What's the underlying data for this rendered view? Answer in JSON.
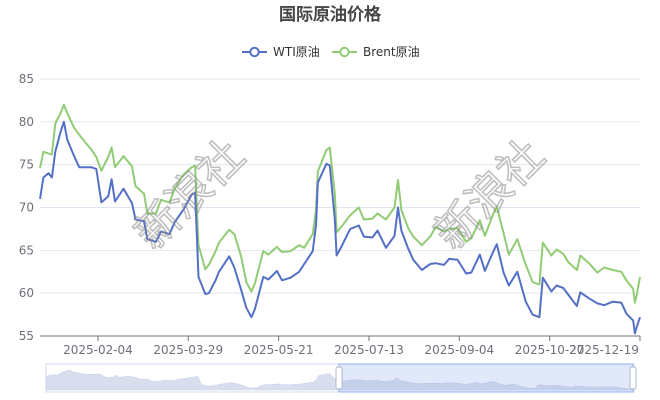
{
  "chart_data": {
    "type": "line",
    "title": "国际原油价格",
    "xlabel": "",
    "ylabel": "",
    "ylim": [
      55,
      85
    ],
    "y_ticks": [
      55,
      60,
      65,
      70,
      75,
      80,
      85
    ],
    "x_tick_labels": [
      "2025-02-04",
      "2025-03-29",
      "2025-05-21",
      "2025-07-13",
      "2025-09-04",
      "2025-10-27",
      "2025-12-19"
    ],
    "x_tick_dates": [
      "2025-02-04",
      "2025-03-29",
      "2025-05-21",
      "2025-07-13",
      "2025-09-04",
      "2025-10-27",
      "2025-12-19"
    ],
    "x_range": [
      "2025-01-01",
      "2025-12-19"
    ],
    "grid": "horizontal",
    "legend_position": "top-center",
    "watermark": "新浪社",
    "series": [
      {
        "name": "WTI原油",
        "color": "#5470c6",
        "points": [
          [
            "2025-01-01",
            71.0
          ],
          [
            "2025-01-03",
            73.5
          ],
          [
            "2025-01-06",
            74.0
          ],
          [
            "2025-01-08",
            73.5
          ],
          [
            "2025-01-10",
            76.5
          ],
          [
            "2025-01-13",
            78.8
          ],
          [
            "2025-01-15",
            80.0
          ],
          [
            "2025-01-17",
            77.9
          ],
          [
            "2025-01-21",
            76.0
          ],
          [
            "2025-01-24",
            74.7
          ],
          [
            "2025-01-28",
            74.7
          ],
          [
            "2025-01-31",
            74.7
          ],
          [
            "2025-02-03",
            74.5
          ],
          [
            "2025-02-06",
            70.6
          ],
          [
            "2025-02-10",
            71.3
          ],
          [
            "2025-02-12",
            73.3
          ],
          [
            "2025-02-14",
            70.7
          ],
          [
            "2025-02-19",
            72.2
          ],
          [
            "2025-02-24",
            70.5
          ],
          [
            "2025-02-26",
            68.6
          ],
          [
            "2025-03-03",
            68.4
          ],
          [
            "2025-03-05",
            66.3
          ],
          [
            "2025-03-10",
            66.0
          ],
          [
            "2025-03-13",
            67.2
          ],
          [
            "2025-03-18",
            66.9
          ],
          [
            "2025-03-21",
            68.3
          ],
          [
            "2025-03-26",
            69.7
          ],
          [
            "2025-03-31",
            71.5
          ],
          [
            "2025-04-02",
            71.7
          ],
          [
            "2025-04-03",
            66.9
          ],
          [
            "2025-04-04",
            61.9
          ],
          [
            "2025-04-08",
            59.9
          ],
          [
            "2025-04-10",
            60.0
          ],
          [
            "2025-04-14",
            61.5
          ],
          [
            "2025-04-16",
            62.5
          ],
          [
            "2025-04-22",
            64.3
          ],
          [
            "2025-04-25",
            63.0
          ],
          [
            "2025-04-29",
            60.4
          ],
          [
            "2025-05-02",
            58.3
          ],
          [
            "2025-05-05",
            57.2
          ],
          [
            "2025-05-07",
            58.1
          ],
          [
            "2025-05-12",
            61.9
          ],
          [
            "2025-05-15",
            61.6
          ],
          [
            "2025-05-20",
            62.6
          ],
          [
            "2025-05-23",
            61.5
          ],
          [
            "2025-05-28",
            61.8
          ],
          [
            "2025-06-02",
            62.5
          ],
          [
            "2025-06-05",
            63.4
          ],
          [
            "2025-06-10",
            64.9
          ],
          [
            "2025-06-12",
            68.0
          ],
          [
            "2025-06-13",
            72.9
          ],
          [
            "2025-06-18",
            75.1
          ],
          [
            "2025-06-20",
            74.9
          ],
          [
            "2025-06-23",
            68.5
          ],
          [
            "2025-06-24",
            64.4
          ],
          [
            "2025-06-27",
            65.5
          ],
          [
            "2025-07-02",
            67.5
          ],
          [
            "2025-07-07",
            67.9
          ],
          [
            "2025-07-10",
            66.6
          ],
          [
            "2025-07-15",
            66.5
          ],
          [
            "2025-07-18",
            67.3
          ],
          [
            "2025-07-23",
            65.3
          ],
          [
            "2025-07-28",
            66.7
          ],
          [
            "2025-07-30",
            70.0
          ],
          [
            "2025-08-01",
            67.3
          ],
          [
            "2025-08-05",
            65.2
          ],
          [
            "2025-08-08",
            63.9
          ],
          [
            "2025-08-13",
            62.7
          ],
          [
            "2025-08-18",
            63.4
          ],
          [
            "2025-08-21",
            63.5
          ],
          [
            "2025-08-26",
            63.3
          ],
          [
            "2025-08-29",
            64.0
          ],
          [
            "2025-09-03",
            63.9
          ],
          [
            "2025-09-08",
            62.3
          ],
          [
            "2025-09-11",
            62.4
          ],
          [
            "2025-09-16",
            64.5
          ],
          [
            "2025-09-19",
            62.6
          ],
          [
            "2025-09-24",
            64.9
          ],
          [
            "2025-09-26",
            65.7
          ],
          [
            "2025-09-30",
            62.4
          ],
          [
            "2025-10-03",
            60.9
          ],
          [
            "2025-10-08",
            62.5
          ],
          [
            "2025-10-13",
            59.0
          ],
          [
            "2025-10-17",
            57.5
          ],
          [
            "2025-10-21",
            57.2
          ],
          [
            "2025-10-23",
            61.8
          ],
          [
            "2025-10-28",
            60.2
          ],
          [
            "2025-10-31",
            60.9
          ],
          [
            "2025-11-04",
            60.6
          ],
          [
            "2025-11-07",
            59.8
          ],
          [
            "2025-11-12",
            58.5
          ],
          [
            "2025-11-14",
            60.1
          ],
          [
            "2025-11-19",
            59.4
          ],
          [
            "2025-11-24",
            58.8
          ],
          [
            "2025-11-28",
            58.6
          ],
          [
            "2025-12-03",
            59.0
          ],
          [
            "2025-12-08",
            58.9
          ],
          [
            "2025-12-11",
            57.6
          ],
          [
            "2025-12-15",
            56.8
          ],
          [
            "2025-12-16",
            55.3
          ],
          [
            "2025-12-17",
            56.0
          ],
          [
            "2025-12-19",
            57.2
          ]
        ]
      },
      {
        "name": "Brent原油",
        "color": "#91cc75",
        "points": [
          [
            "2025-01-01",
            74.6
          ],
          [
            "2025-01-03",
            76.5
          ],
          [
            "2025-01-06",
            76.3
          ],
          [
            "2025-01-08",
            76.2
          ],
          [
            "2025-01-10",
            79.8
          ],
          [
            "2025-01-13",
            81.0
          ],
          [
            "2025-01-15",
            82.0
          ],
          [
            "2025-01-17",
            81.0
          ],
          [
            "2025-01-21",
            79.3
          ],
          [
            "2025-01-24",
            78.5
          ],
          [
            "2025-01-28",
            77.5
          ],
          [
            "2025-01-31",
            76.8
          ],
          [
            "2025-02-03",
            75.9
          ],
          [
            "2025-02-06",
            74.3
          ],
          [
            "2025-02-10",
            75.9
          ],
          [
            "2025-02-12",
            77.0
          ],
          [
            "2025-02-14",
            74.7
          ],
          [
            "2025-02-19",
            76.0
          ],
          [
            "2025-02-24",
            74.8
          ],
          [
            "2025-02-26",
            72.5
          ],
          [
            "2025-03-03",
            71.6
          ],
          [
            "2025-03-05",
            69.3
          ],
          [
            "2025-03-10",
            69.3
          ],
          [
            "2025-03-13",
            70.9
          ],
          [
            "2025-03-18",
            70.6
          ],
          [
            "2025-03-21",
            72.2
          ],
          [
            "2025-03-26",
            73.8
          ],
          [
            "2025-03-31",
            74.7
          ],
          [
            "2025-04-02",
            74.9
          ],
          [
            "2025-04-03",
            70.1
          ],
          [
            "2025-04-04",
            65.6
          ],
          [
            "2025-04-08",
            62.8
          ],
          [
            "2025-04-10",
            63.3
          ],
          [
            "2025-04-14",
            64.9
          ],
          [
            "2025-04-16",
            65.9
          ],
          [
            "2025-04-22",
            67.4
          ],
          [
            "2025-04-25",
            66.9
          ],
          [
            "2025-04-29",
            64.3
          ],
          [
            "2025-05-02",
            61.3
          ],
          [
            "2025-05-05",
            60.2
          ],
          [
            "2025-05-07",
            61.1
          ],
          [
            "2025-05-12",
            64.9
          ],
          [
            "2025-05-15",
            64.5
          ],
          [
            "2025-05-20",
            65.4
          ],
          [
            "2025-05-23",
            64.8
          ],
          [
            "2025-05-28",
            64.9
          ],
          [
            "2025-06-02",
            65.6
          ],
          [
            "2025-06-05",
            65.3
          ],
          [
            "2025-06-10",
            66.9
          ],
          [
            "2025-06-12",
            69.8
          ],
          [
            "2025-06-13",
            74.2
          ],
          [
            "2025-06-18",
            76.7
          ],
          [
            "2025-06-20",
            77.0
          ],
          [
            "2025-06-23",
            71.5
          ],
          [
            "2025-06-24",
            67.1
          ],
          [
            "2025-06-27",
            67.8
          ],
          [
            "2025-07-02",
            69.1
          ],
          [
            "2025-07-07",
            70.0
          ],
          [
            "2025-07-10",
            68.6
          ],
          [
            "2025-07-15",
            68.7
          ],
          [
            "2025-07-18",
            69.3
          ],
          [
            "2025-07-23",
            68.6
          ],
          [
            "2025-07-28",
            70.0
          ],
          [
            "2025-07-30",
            73.2
          ],
          [
            "2025-08-01",
            69.7
          ],
          [
            "2025-08-05",
            67.6
          ],
          [
            "2025-08-08",
            66.6
          ],
          [
            "2025-08-13",
            65.6
          ],
          [
            "2025-08-18",
            66.6
          ],
          [
            "2025-08-21",
            67.7
          ],
          [
            "2025-08-26",
            67.2
          ],
          [
            "2025-08-29",
            67.5
          ],
          [
            "2025-09-03",
            67.6
          ],
          [
            "2025-09-08",
            66.0
          ],
          [
            "2025-09-11",
            66.4
          ],
          [
            "2025-09-16",
            68.5
          ],
          [
            "2025-09-19",
            66.7
          ],
          [
            "2025-09-24",
            69.3
          ],
          [
            "2025-09-26",
            70.1
          ],
          [
            "2025-09-30",
            67.0
          ],
          [
            "2025-10-03",
            64.5
          ],
          [
            "2025-10-08",
            66.3
          ],
          [
            "2025-10-13",
            63.3
          ],
          [
            "2025-10-17",
            61.3
          ],
          [
            "2025-10-21",
            61.0
          ],
          [
            "2025-10-23",
            65.9
          ],
          [
            "2025-10-28",
            64.4
          ],
          [
            "2025-10-31",
            65.1
          ],
          [
            "2025-11-04",
            64.6
          ],
          [
            "2025-11-07",
            63.6
          ],
          [
            "2025-11-12",
            62.7
          ],
          [
            "2025-11-14",
            64.4
          ],
          [
            "2025-11-19",
            63.5
          ],
          [
            "2025-11-24",
            62.4
          ],
          [
            "2025-11-28",
            63.0
          ],
          [
            "2025-12-03",
            62.7
          ],
          [
            "2025-12-08",
            62.5
          ],
          [
            "2025-12-11",
            61.5
          ],
          [
            "2025-12-15",
            60.5
          ],
          [
            "2025-12-16",
            58.9
          ],
          [
            "2025-12-17",
            59.7
          ],
          [
            "2025-12-19",
            61.9
          ]
        ]
      }
    ],
    "data_zoom": {
      "start_fraction": 0.5,
      "end_fraction": 1.0
    }
  }
}
